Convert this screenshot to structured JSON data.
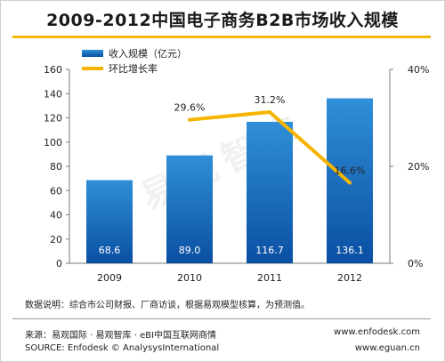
{
  "header": {
    "title": "2009-2012中国电子商务B2B市场收入规模"
  },
  "notes": {
    "data_note": "数据说明：综合市公司财报、厂商访谈，根据易观模型核算，为预测值。"
  },
  "footer": {
    "source_cn": "来源：易观国际 · 易观智库 · eBI中国互联网商情",
    "source_en": "SOURCE: Enfodesk © AnalysysInternational",
    "url1": "www.enfodesk.com",
    "url2": "www.eguan.cn"
  },
  "watermark": {
    "text": "易观智库"
  },
  "colors": {
    "bar_top": "#2f8fd8",
    "bar_bottom": "#0a4fa3",
    "line": "#f4b400",
    "accent_rule": "#f2b80b"
  },
  "chart_data": {
    "type": "bar",
    "categories": [
      "2009",
      "2010",
      "2011",
      "2012"
    ],
    "series": [
      {
        "name": "收入规模（亿元）",
        "type": "bar",
        "axis": "left",
        "values": [
          68.6,
          89.0,
          116.7,
          136.1
        ],
        "labels": [
          "68.6",
          "89.0",
          "116.7",
          "136.1"
        ]
      },
      {
        "name": "环比增长率",
        "type": "line",
        "axis": "right",
        "values": [
          null,
          29.6,
          31.2,
          16.6
        ],
        "labels": [
          null,
          "29.6%",
          "31.2%",
          "16.6%"
        ]
      }
    ],
    "y_left": {
      "min": 0,
      "max": 160,
      "ticks": [
        "0",
        "20",
        "40",
        "60",
        "80",
        "100",
        "120",
        "140",
        "160"
      ]
    },
    "y_right": {
      "min": 0,
      "max": 40,
      "ticks": [
        "0%",
        "20%",
        "40%"
      ]
    },
    "legend": {
      "position": "top-left"
    },
    "grid": false
  }
}
